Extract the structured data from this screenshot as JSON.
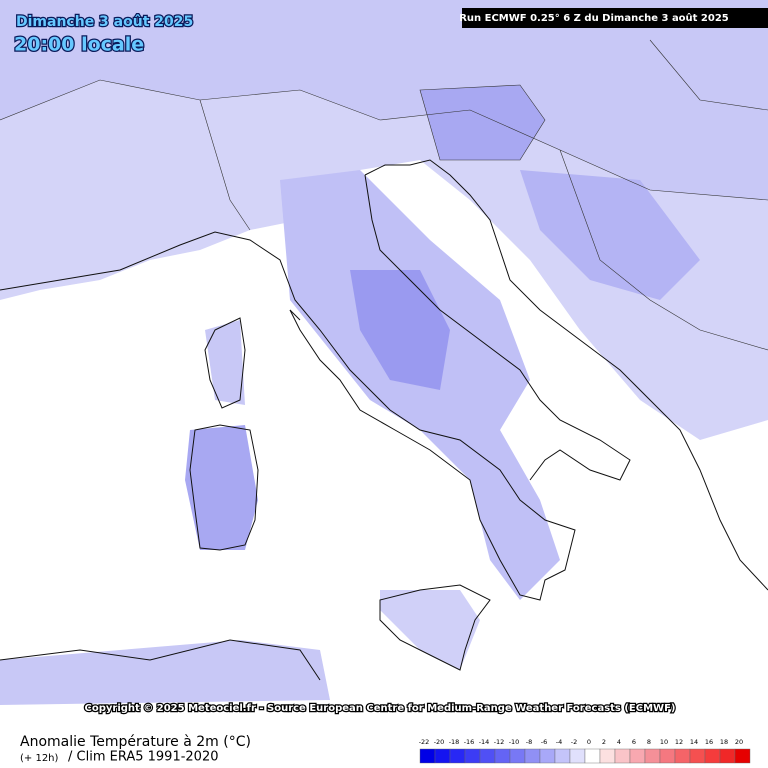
{
  "header": {
    "date": "Dimanche 3 août 2025",
    "time": "20:00 locale",
    "run": "Run ECMWF 0.25° 6 Z du Dimanche 3 août 2025"
  },
  "copyright": "Copyright © 2025 Meteociel.fr - Source European Centre for Medium-Range Weather Forecasts (ECMWF)",
  "legend": {
    "title": "Anomalie Température à 2m (°C)",
    "lead": "(+ 12h)",
    "clim": "/ Clim ERA5 1991-2020",
    "ticks": [
      -22,
      -20,
      -18,
      -16,
      -14,
      -12,
      -10,
      -8,
      -6,
      -4,
      -2,
      0,
      2,
      4,
      6,
      8,
      10,
      12,
      14,
      16,
      18,
      20
    ],
    "colors": [
      "#0000e6",
      "#1414f0",
      "#2828f5",
      "#3c3cf5",
      "#5050f5",
      "#6464f5",
      "#7878f5",
      "#9090f5",
      "#a8a8f8",
      "#c4c4fa",
      "#e0e0fc",
      "#ffffff",
      "#fce0e0",
      "#fac4c8",
      "#f8a8b0",
      "#f59098",
      "#f57880",
      "#f56468",
      "#f55050",
      "#f53c3c",
      "#f02828",
      "#e60000"
    ]
  }
}
